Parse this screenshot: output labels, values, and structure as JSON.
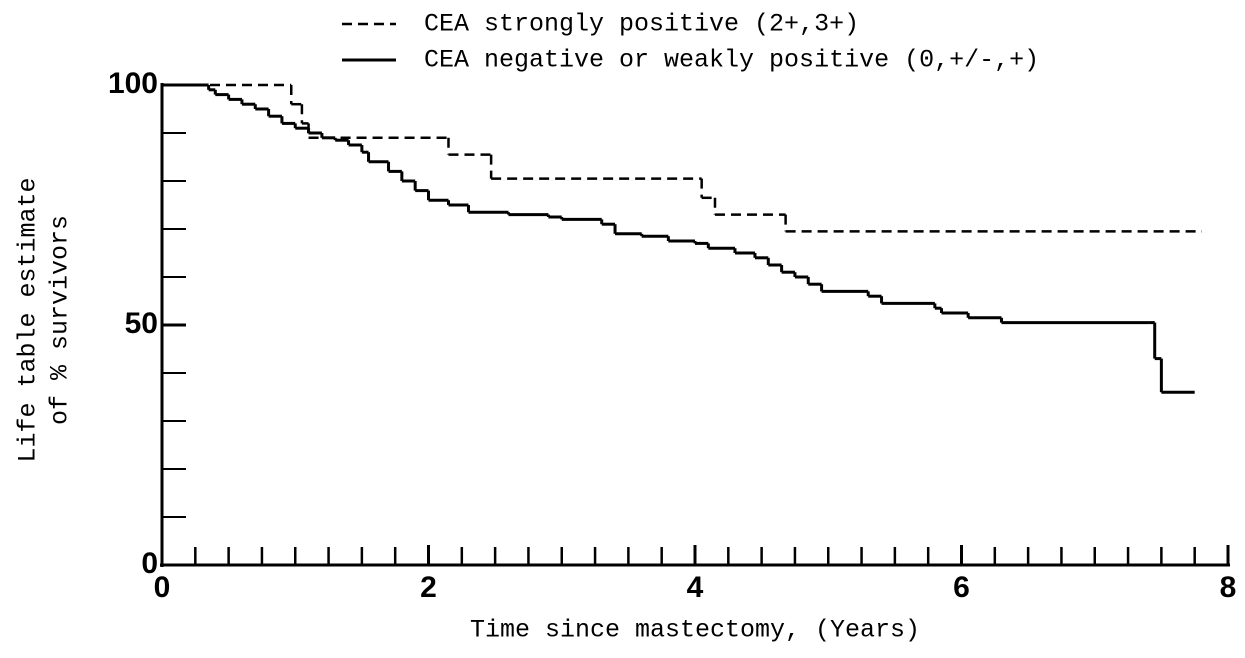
{
  "chart_data": {
    "type": "step",
    "xlabel": "Time since mastectomy, (Years)",
    "ylabel": [
      "Life table estimate",
      "of % survivors"
    ],
    "xlim": [
      0,
      8
    ],
    "xticks": [
      0,
      2,
      4,
      6,
      8
    ],
    "x_minor_ticks": [
      0.25,
      0.5,
      0.75,
      1,
      1.25,
      1.5,
      1.75,
      2,
      2.25,
      2.5,
      2.75,
      3,
      3.25,
      3.5,
      3.75,
      4,
      4.25,
      4.5,
      4.75,
      5,
      5.25,
      5.5,
      5.75,
      6,
      6.25,
      6.5,
      6.75,
      7,
      7.25,
      7.5,
      7.75,
      8
    ],
    "ylim": [
      0,
      100
    ],
    "yticks": [
      0,
      50,
      100
    ],
    "y_minor_ticks": [
      10,
      20,
      30,
      40,
      60,
      70,
      80,
      90
    ],
    "legend": "top",
    "series": [
      {
        "name": "CEA strongly positive (2+,3+)",
        "color": "#000000",
        "style": "dashed",
        "x": [
          0,
          0.97,
          1.05,
          1.1,
          2.15,
          2.47,
          4.05,
          4.15,
          4.68,
          7.8
        ],
        "values": [
          100,
          96,
          92,
          89,
          85.5,
          80.5,
          76.5,
          73,
          69.5,
          69.5
        ]
      },
      {
        "name": "CEA negative or weakly positive (0,+/-,+)",
        "color": "#000000",
        "style": "double",
        "x": [
          0,
          0.3,
          0.35,
          0.4,
          0.5,
          0.6,
          0.7,
          0.8,
          0.9,
          1.0,
          1.1,
          1.2,
          1.3,
          1.4,
          1.5,
          1.55,
          1.7,
          1.8,
          1.9,
          2.0,
          2.15,
          2.3,
          2.6,
          2.9,
          3.0,
          3.3,
          3.4,
          3.6,
          3.8,
          4.0,
          4.1,
          4.3,
          4.45,
          4.55,
          4.65,
          4.75,
          4.85,
          4.95,
          5.3,
          5.4,
          5.8,
          5.85,
          6.05,
          6.3,
          7.4,
          7.45,
          7.5,
          7.75
        ],
        "values": [
          100,
          100,
          99,
          98,
          97,
          96,
          95,
          93.5,
          92,
          91,
          90,
          89,
          88.5,
          87.5,
          86,
          84,
          82,
          80,
          78,
          76,
          75,
          73.5,
          73,
          72.5,
          72,
          71,
          69,
          68.5,
          67.5,
          67,
          66,
          65,
          64,
          62.5,
          61,
          60,
          58.5,
          57,
          56,
          54.5,
          53.5,
          52.5,
          51.5,
          50.5,
          50.5,
          43,
          36,
          36
        ]
      }
    ]
  }
}
